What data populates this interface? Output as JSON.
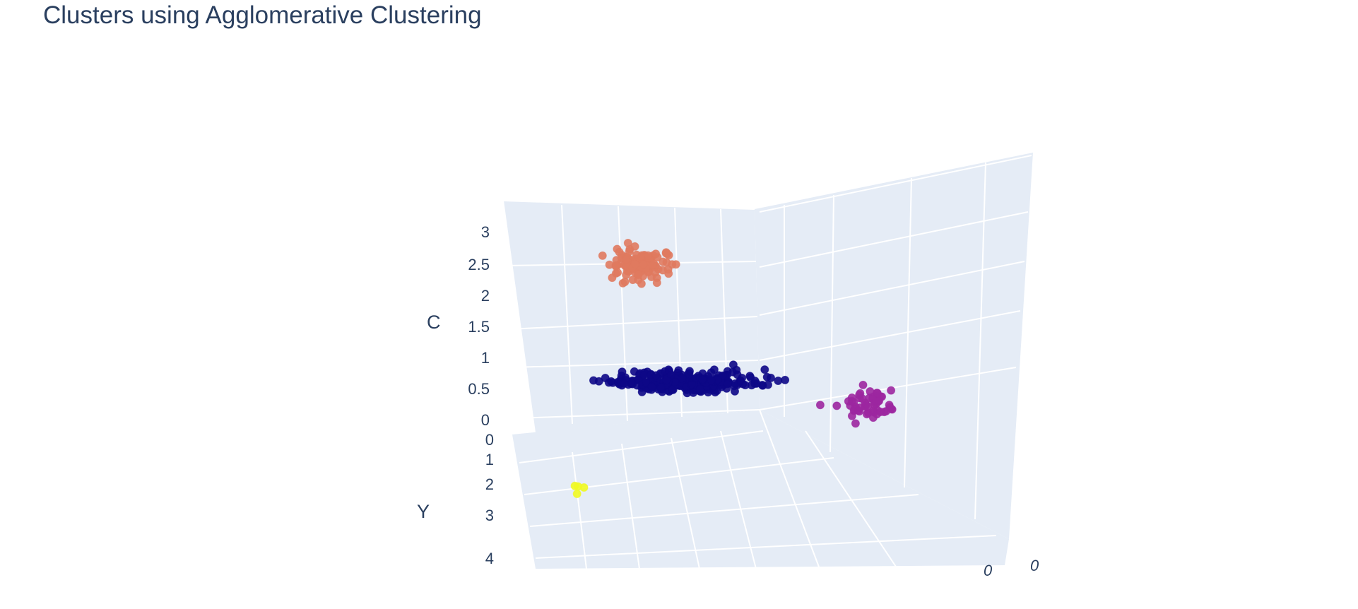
{
  "chart_data": {
    "type": "scatter",
    "subtype": "scatter3d",
    "title": "Clusters using Agglomerative Clustering",
    "axes": {
      "c": {
        "label": "C",
        "range": [
          0,
          3.3
        ],
        "ticks": [
          "0",
          "0.5",
          "1",
          "1.5",
          "2",
          "2.5",
          "3"
        ]
      },
      "y": {
        "label": "Y",
        "range": [
          0,
          4
        ],
        "ticks": [
          "0",
          "1",
          "2",
          "3",
          "4"
        ]
      },
      "x": {
        "label": "",
        "ticks": [
          "0",
          "0"
        ]
      }
    },
    "grid": true,
    "scene_background": "#e5ecf6",
    "gridline_color": "#ffffff",
    "legend": "none",
    "clusters": [
      {
        "color": "#0d0887",
        "point_count": 320
      },
      {
        "color": "#e07a5f",
        "point_count": 110
      },
      {
        "color": "#9c27a0",
        "point_count": 55
      },
      {
        "color": "#f0f921",
        "point_count": 4
      }
    ]
  }
}
